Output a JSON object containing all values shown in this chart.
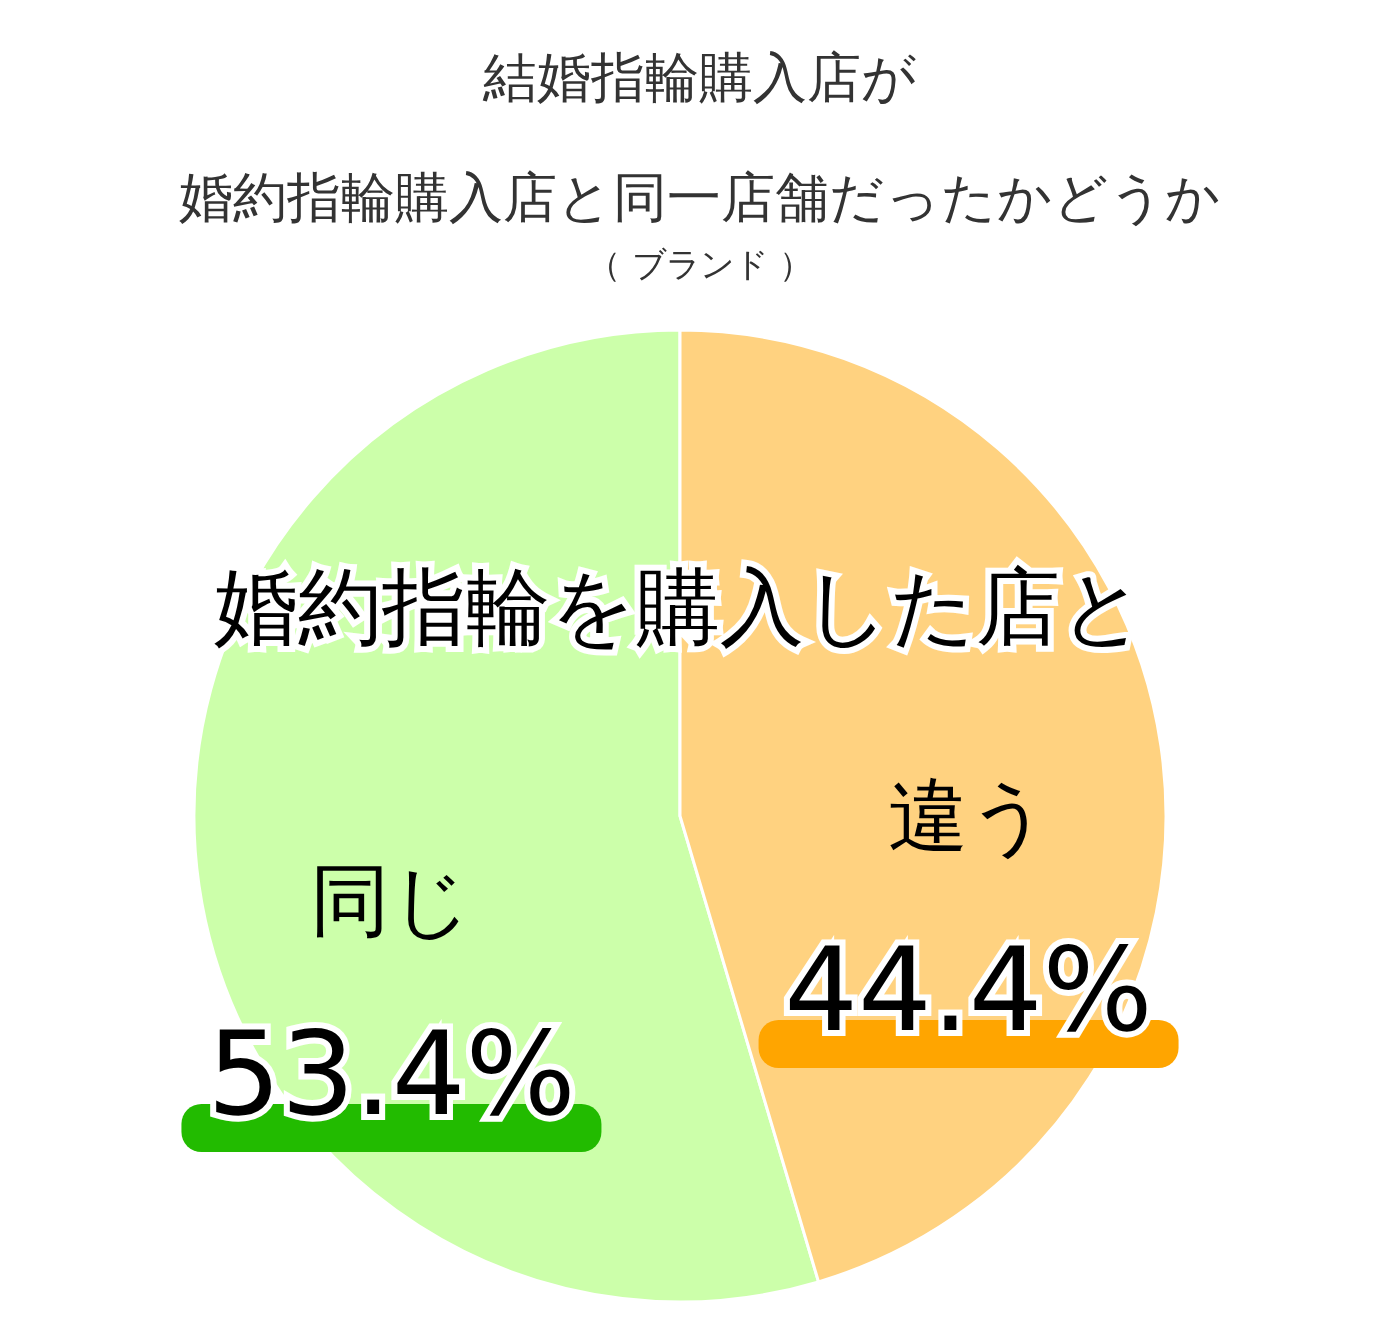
{
  "chart_data": {
    "type": "pie",
    "title": "結婚指輪購入店が",
    "subtitle": "婚約指輪購入店と同一店舗だったかどうか",
    "categories": [
      "同じ",
      "違う"
    ],
    "values": [
      53.4,
      44.4
    ],
    "value_labels": [
      "53.4%",
      "44.4%"
    ],
    "colors": [
      "#ccffaa",
      "#ffd280"
    ],
    "annotations": [
      "（ ブランド ）",
      "婚約指輪を購入した店と"
    ]
  }
}
